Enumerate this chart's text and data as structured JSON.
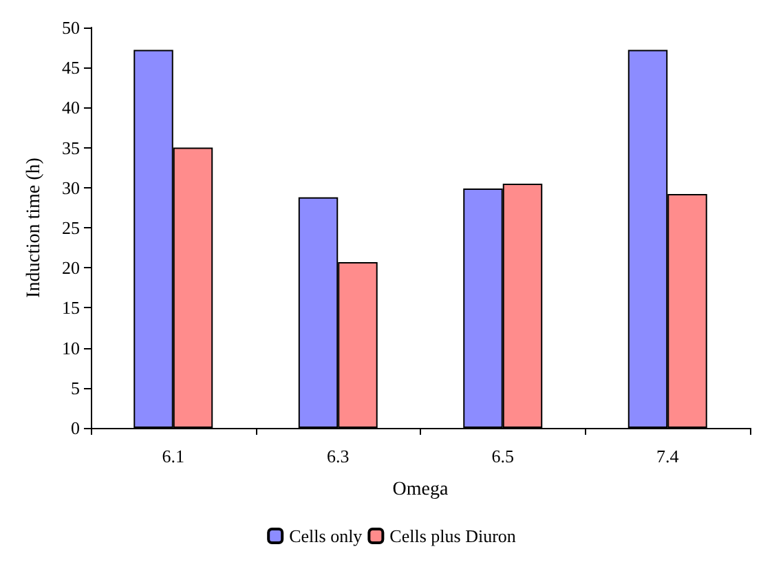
{
  "chart_data": {
    "type": "bar",
    "xlabel": "Omega",
    "ylabel": "Induction time (h)",
    "categories": [
      "6.1",
      "6.3",
      "6.5",
      "7.4"
    ],
    "series": [
      {
        "name": "Cells only",
        "color": "#8c8cff",
        "values": [
          47.2,
          28.8,
          29.9,
          47.2
        ]
      },
      {
        "name": "Cells plus Diuron",
        "color": "#ff8c8c",
        "values": [
          35,
          20.7,
          30.5,
          29.2
        ]
      }
    ],
    "ylim": [
      0,
      50
    ],
    "yticks": [
      0,
      5,
      10,
      15,
      20,
      25,
      30,
      35,
      40,
      45,
      50
    ],
    "grid": false,
    "legend": "bottom"
  }
}
